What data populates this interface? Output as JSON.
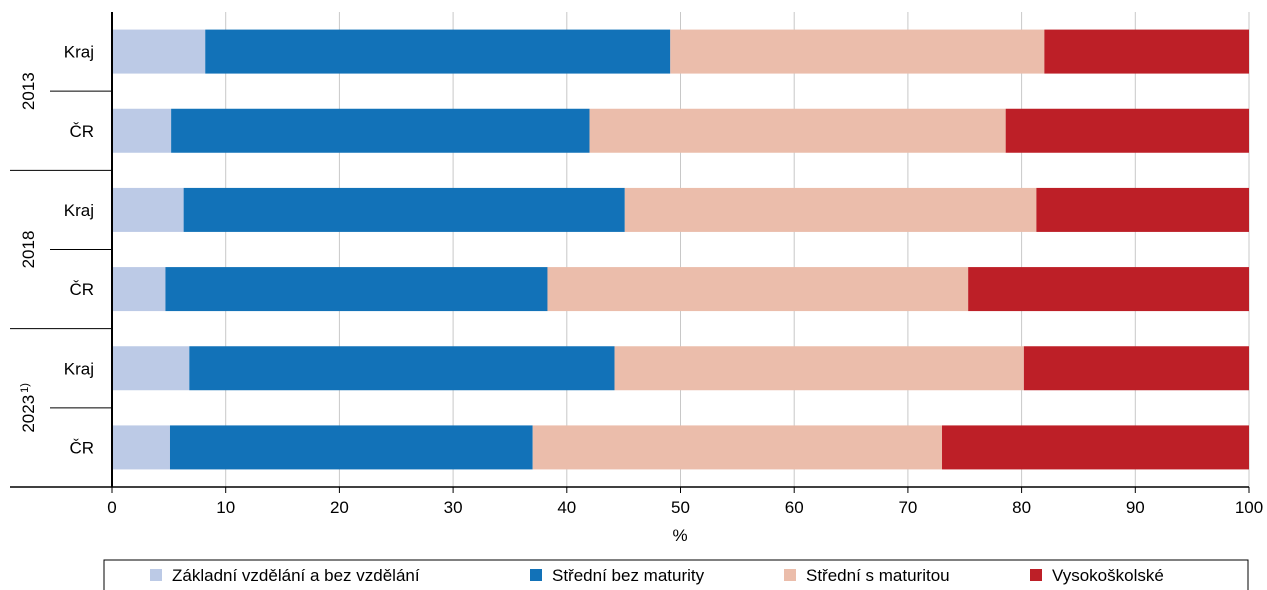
{
  "chart_data": {
    "type": "bar",
    "orientation": "horizontal",
    "stacked": true,
    "xlabel": "%",
    "xlim": [
      0,
      100
    ],
    "xticks": [
      0,
      10,
      20,
      30,
      40,
      50,
      60,
      70,
      80,
      90,
      100
    ],
    "grid": "vertical",
    "legend_placement": "bottom",
    "groups": [
      {
        "label": "2013",
        "note": "",
        "categories": [
          "Kraj",
          "ČR"
        ]
      },
      {
        "label": "2018",
        "note": "",
        "categories": [
          "Kraj",
          "ČR"
        ]
      },
      {
        "label": "2023",
        "note": "1)",
        "categories": [
          "Kraj",
          "ČR"
        ]
      }
    ],
    "series": [
      {
        "name": "Základní vzdělání a bez vzdělání",
        "color": "#bccae6",
        "values": [
          8.2,
          5.2,
          6.3,
          4.7,
          6.8,
          5.1
        ]
      },
      {
        "name": "Střední bez maturity",
        "color": "#1272b8",
        "values": [
          40.9,
          36.8,
          38.8,
          33.6,
          37.4,
          31.9
        ]
      },
      {
        "name": "Střední s maturitou",
        "color": "#ebbdab",
        "values": [
          32.9,
          36.6,
          36.2,
          37.0,
          36.0,
          36.0
        ]
      },
      {
        "name": "Vysokoškolské",
        "color": "#bd1f27",
        "values": [
          18.0,
          21.4,
          18.7,
          24.7,
          19.8,
          27.0
        ]
      }
    ]
  }
}
